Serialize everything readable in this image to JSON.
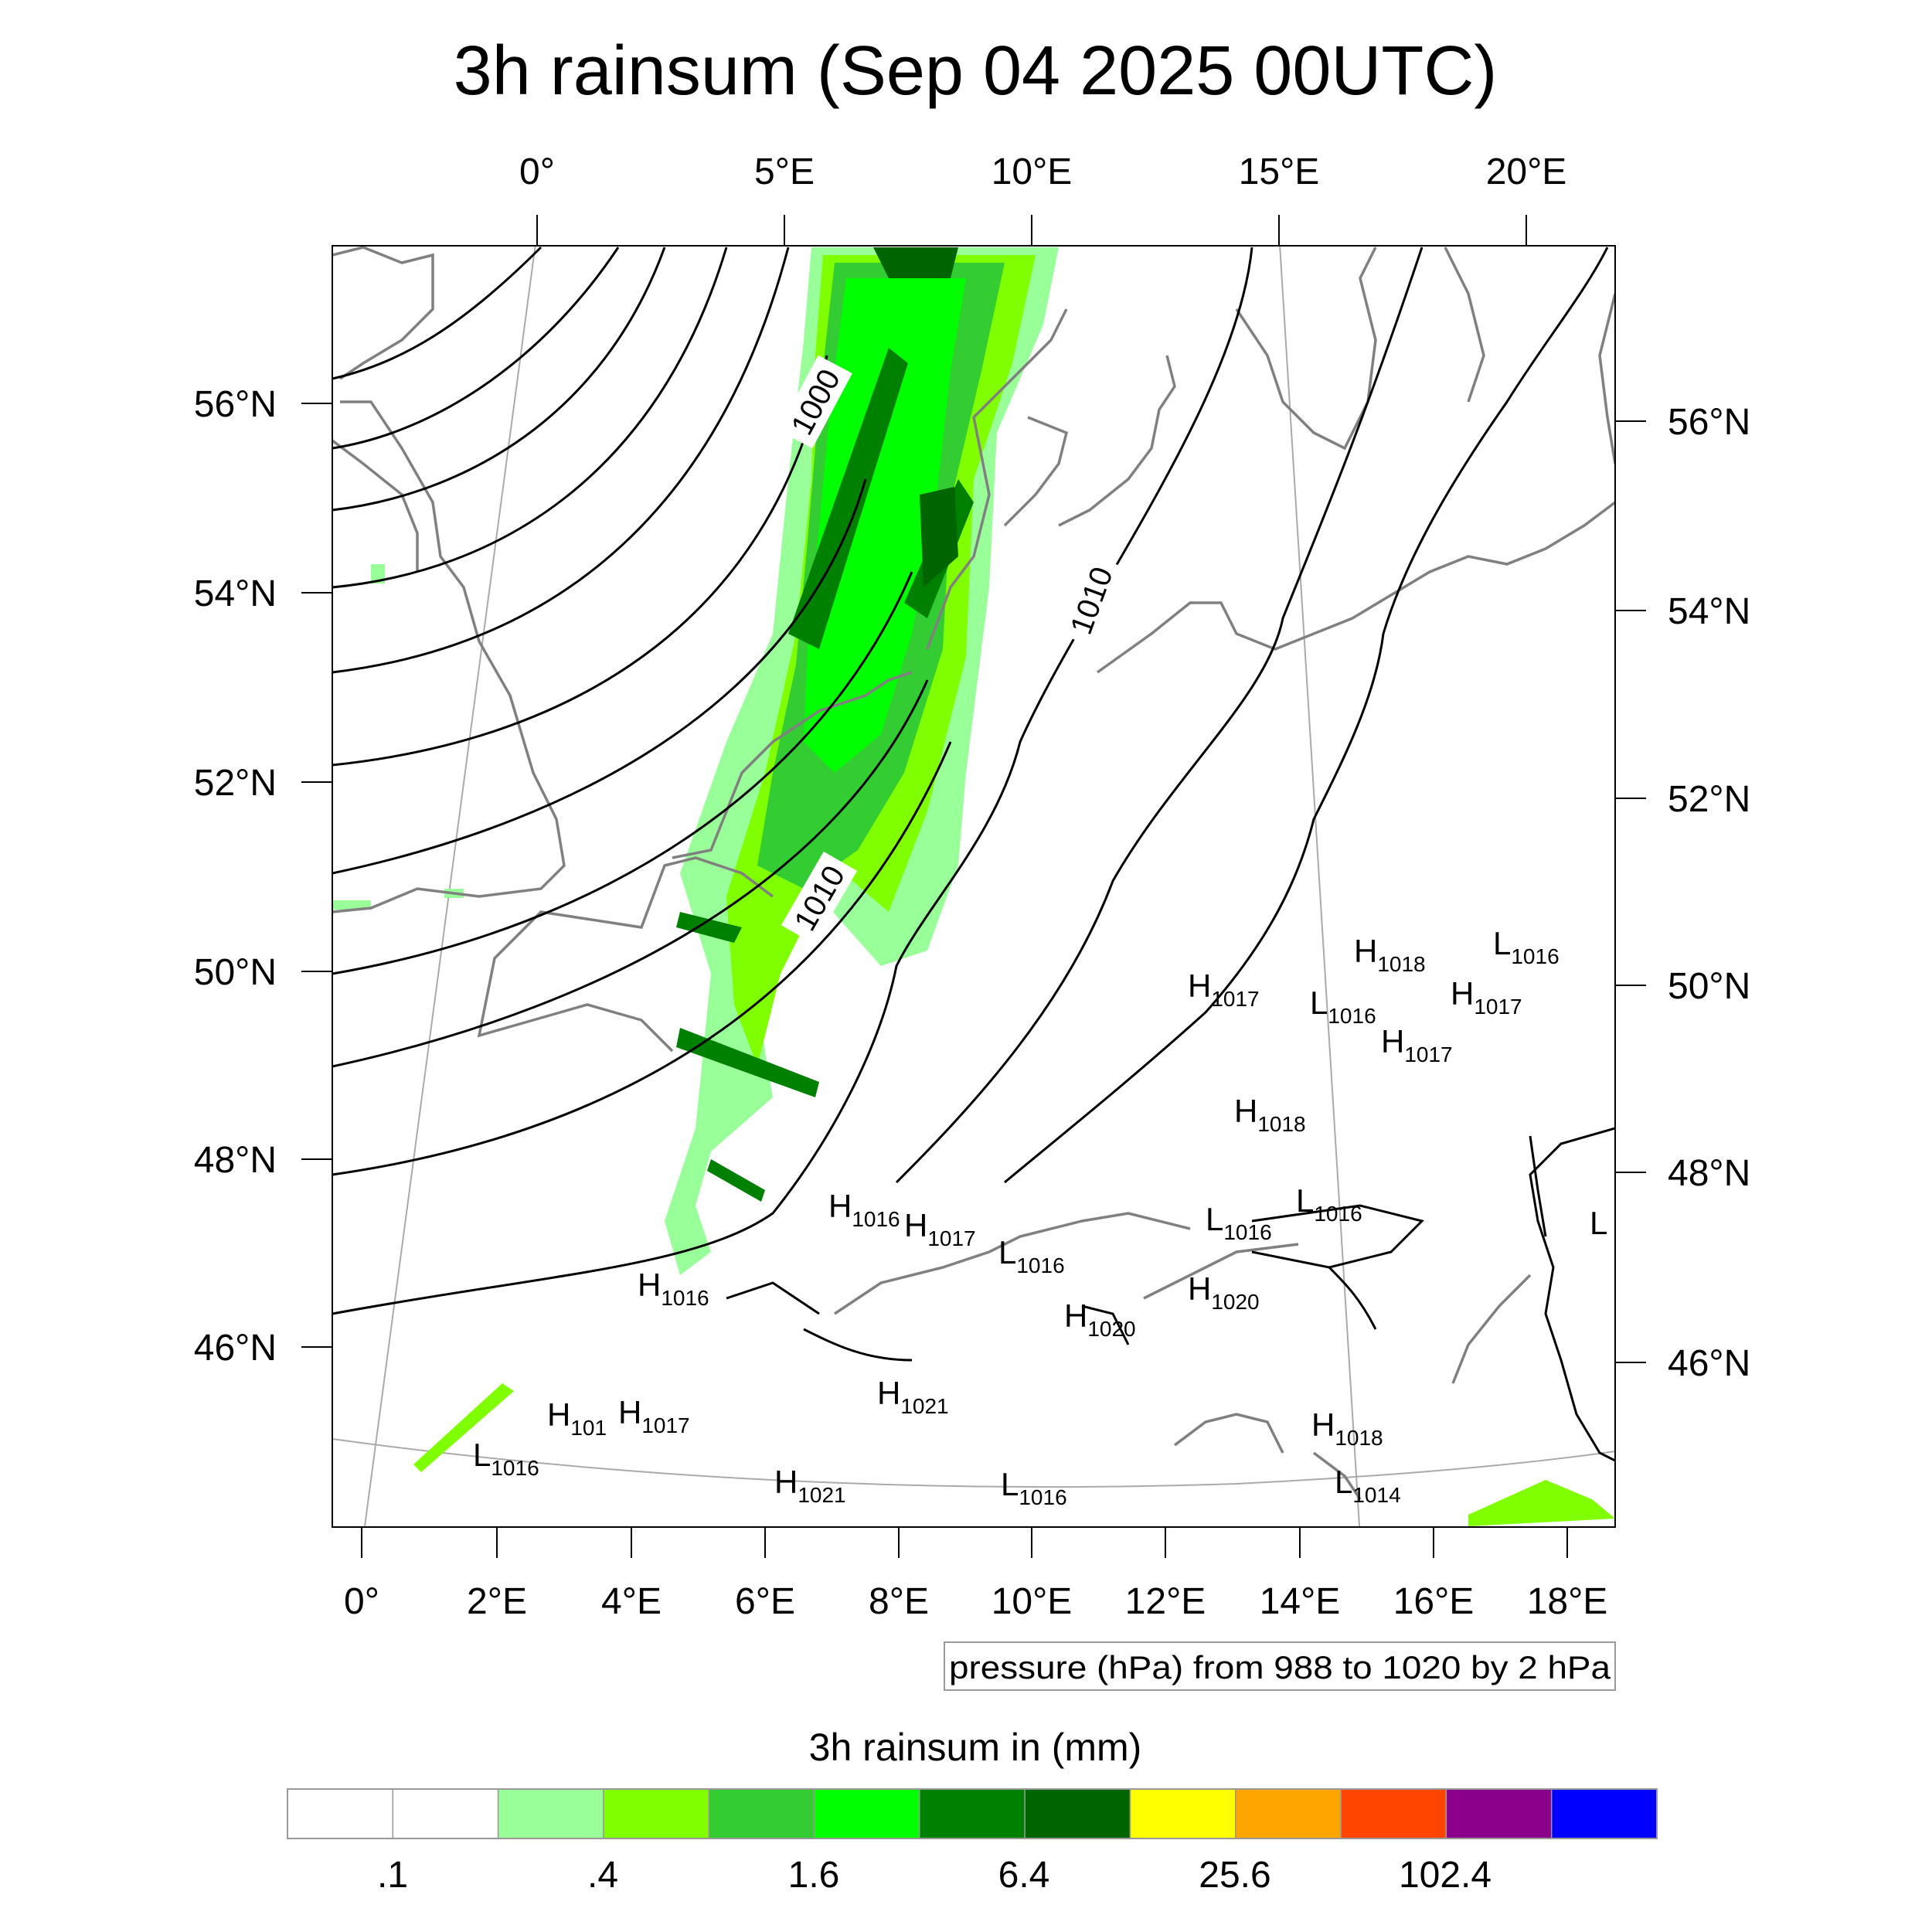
{
  "title": "3h rainsum (Sep 04 2025 00UTC)",
  "top_lon_ticks": [
    "0°",
    "5°E",
    "10°E",
    "15°E",
    "20°E"
  ],
  "bottom_lon_ticks": [
    "0°",
    "2°E",
    "4°E",
    "6°E",
    "8°E",
    "10°E",
    "12°E",
    "14°E",
    "16°E",
    "18°E"
  ],
  "left_lat_ticks": [
    "56°N",
    "54°N",
    "52°N",
    "50°N",
    "48°N",
    "46°N"
  ],
  "right_lat_ticks": [
    "56°N",
    "54°N",
    "52°N",
    "50°N",
    "48°N",
    "46°N"
  ],
  "isobar_labels": [
    "1000",
    "1010",
    "1010"
  ],
  "contour_info": "pressure (hPa) from 988 to 1020 by 2 hPa",
  "colorbar": {
    "title": "3h rainsum in (mm)",
    "colors": [
      "#ffffff",
      "#ffffff",
      "#99ff99",
      "#80ff00",
      "#33cc33",
      "#00ff00",
      "#008000",
      "#006400",
      "#ffff00",
      "#ffa500",
      "#ff4500",
      "#8b008b",
      "#0000ff"
    ],
    "labels": [
      ".1",
      ".4",
      "1.6",
      "6.4",
      "25.6",
      "102.4"
    ]
  },
  "pressure_centers": [
    {
      "type": "H",
      "value": "1018"
    },
    {
      "type": "L",
      "value": "1016"
    },
    {
      "type": "H",
      "value": "1017"
    },
    {
      "type": "L",
      "value": "1016"
    },
    {
      "type": "H",
      "value": "1017"
    },
    {
      "type": "H",
      "value": "1017"
    },
    {
      "type": "H",
      "value": "1018"
    },
    {
      "type": "H",
      "value": "1016"
    },
    {
      "type": "H",
      "value": "1017"
    },
    {
      "type": "L",
      "value": "1016"
    },
    {
      "type": "L",
      "value": "1016"
    },
    {
      "type": "L",
      "value": "1016"
    },
    {
      "type": "H",
      "value": "1016"
    },
    {
      "type": "H",
      "value": "1020"
    },
    {
      "type": "H",
      "value": "1020"
    },
    {
      "type": "H",
      "value": "1021"
    },
    {
      "type": "H",
      "value": "101"
    },
    {
      "type": "H",
      "value": "1017"
    },
    {
      "type": "L",
      "value": "1016"
    },
    {
      "type": "H",
      "value": "1021"
    },
    {
      "type": "L",
      "value": "1016"
    },
    {
      "type": "H",
      "value": "1018"
    },
    {
      "type": "L",
      "value": "1014"
    },
    {
      "type": "L",
      "value": ""
    }
  ]
}
